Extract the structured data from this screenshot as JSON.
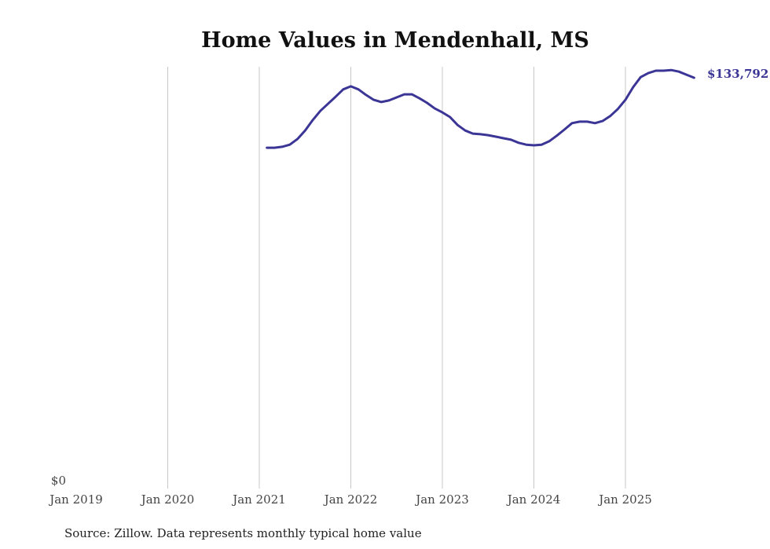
{
  "chart_data": {
    "type": "line",
    "title": "Home Values in Mendenhall, MS",
    "source": "Source: Zillow. Data represents monthly typical home value",
    "xlabel": "",
    "ylabel": "",
    "x_ticks": [
      "Jan 2019",
      "Jan 2020",
      "Jan 2021",
      "Jan 2022",
      "Jan 2023",
      "Jan 2024",
      "Jan 2025"
    ],
    "y_ticks": [
      "$0"
    ],
    "ylim": [
      0,
      137000
    ],
    "x_start": "Feb 2021",
    "x_end": "Oct 2025",
    "grid": "vertical",
    "line_color": "#3b3596",
    "end_label": "$133,792",
    "series": [
      {
        "name": "Typical home value",
        "values": [
          111000,
          111000,
          111300,
          112000,
          113800,
          116600,
          120000,
          123000,
          125300,
          127600,
          130000,
          131000,
          130000,
          128200,
          126600,
          125900,
          126400,
          127400,
          128400,
          128400,
          127100,
          125600,
          123800,
          122500,
          121000,
          118400,
          116600,
          115600,
          115400,
          115100,
          114600,
          114100,
          113600,
          112600,
          112000,
          111800,
          112000,
          113100,
          114900,
          116900,
          119000,
          119500,
          119500,
          119000,
          119700,
          121300,
          123600,
          126600,
          130700,
          134000,
          135300,
          136100,
          136100,
          136300,
          135800,
          134800,
          133792
        ]
      }
    ]
  }
}
